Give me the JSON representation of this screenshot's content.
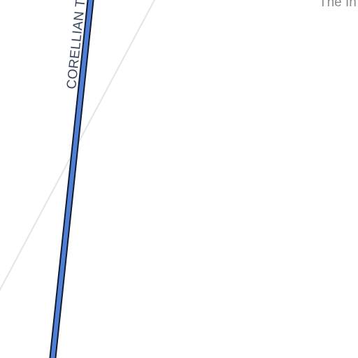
{
  "map": {
    "road": {
      "name": "CORELLIAN T",
      "fill_color": "#4f7fd4",
      "casing_color": "#111a2e"
    },
    "thin_road_color": "#e4e4e4",
    "place_label": "The In",
    "place_label_color": "#8a8a8a",
    "road_label_color": "#3b4660",
    "background_color": "#ffffff"
  }
}
